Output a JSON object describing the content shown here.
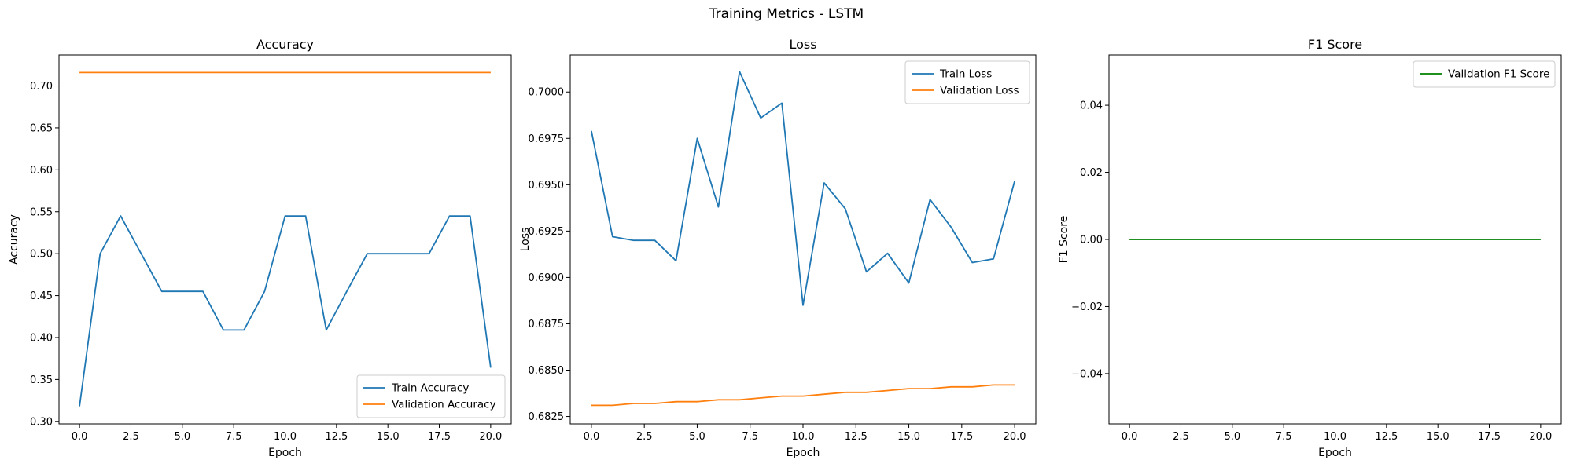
{
  "figure": {
    "suptitle": "Training Metrics - LSTM"
  },
  "colors": {
    "blue": "#1f77b4",
    "orange": "#ff7f0e",
    "green": "#008000",
    "axis": "#000000"
  },
  "chart_data": [
    {
      "type": "line",
      "title": "Accuracy",
      "xlabel": "Epoch",
      "ylabel": "Accuracy",
      "xlim": [
        -1,
        21
      ],
      "ylim": [
        0.297,
        0.737
      ],
      "xticks": [
        0,
        2.5,
        5,
        7.5,
        10,
        12.5,
        15,
        17.5,
        20
      ],
      "xtick_labels": [
        "0.0",
        "2.5",
        "5.0",
        "7.5",
        "10.0",
        "12.5",
        "15.0",
        "17.5",
        "20.0"
      ],
      "yticks": [
        0.3,
        0.35,
        0.4,
        0.45,
        0.5,
        0.55,
        0.6,
        0.65,
        0.7
      ],
      "ytick_labels": [
        "0.30",
        "0.35",
        "0.40",
        "0.45",
        "0.50",
        "0.55",
        "0.60",
        "0.65",
        "0.70"
      ],
      "legend": "lower right",
      "grid": false,
      "series": [
        {
          "name": "Train Accuracy",
          "color": "#1f77b4",
          "x": [
            0,
            1,
            2,
            3,
            4,
            5,
            6,
            7,
            8,
            9,
            10,
            11,
            12,
            13,
            14,
            15,
            16,
            17,
            18,
            19,
            20
          ],
          "y": [
            0.318,
            0.5,
            0.545,
            0.5,
            0.455,
            0.455,
            0.455,
            0.409,
            0.409,
            0.455,
            0.545,
            0.545,
            0.409,
            0.455,
            0.5,
            0.5,
            0.5,
            0.5,
            0.545,
            0.545,
            0.364
          ]
        },
        {
          "name": "Validation Accuracy",
          "color": "#ff7f0e",
          "x": [
            0,
            1,
            2,
            3,
            4,
            5,
            6,
            7,
            8,
            9,
            10,
            11,
            12,
            13,
            14,
            15,
            16,
            17,
            18,
            19,
            20
          ],
          "y": [
            0.716,
            0.716,
            0.716,
            0.716,
            0.716,
            0.716,
            0.716,
            0.716,
            0.716,
            0.716,
            0.716,
            0.716,
            0.716,
            0.716,
            0.716,
            0.716,
            0.716,
            0.716,
            0.716,
            0.716,
            0.716
          ]
        }
      ]
    },
    {
      "type": "line",
      "title": "Loss",
      "xlabel": "Epoch",
      "ylabel": "Loss",
      "xlim": [
        -1,
        21
      ],
      "ylim": [
        0.6821,
        0.702
      ],
      "xticks": [
        0,
        2.5,
        5,
        7.5,
        10,
        12.5,
        15,
        17.5,
        20
      ],
      "xtick_labels": [
        "0.0",
        "2.5",
        "5.0",
        "7.5",
        "10.0",
        "12.5",
        "15.0",
        "17.5",
        "20.0"
      ],
      "yticks": [
        0.6825,
        0.685,
        0.6875,
        0.69,
        0.6925,
        0.695,
        0.6975,
        0.7
      ],
      "ytick_labels": [
        "0.6825",
        "0.6850",
        "0.6875",
        "0.6900",
        "0.6925",
        "0.6950",
        "0.6975",
        "0.7000"
      ],
      "legend": "upper right",
      "grid": false,
      "series": [
        {
          "name": "Train Loss",
          "color": "#1f77b4",
          "x": [
            0,
            1,
            2,
            3,
            4,
            5,
            6,
            7,
            8,
            9,
            10,
            11,
            12,
            13,
            14,
            15,
            16,
            17,
            18,
            19,
            20
          ],
          "y": [
            0.6979,
            0.6922,
            0.692,
            0.692,
            0.6909,
            0.6975,
            0.6938,
            0.7011,
            0.6986,
            0.6994,
            0.6885,
            0.6951,
            0.6937,
            0.6903,
            0.6913,
            0.6897,
            0.6942,
            0.6927,
            0.6908,
            0.691,
            0.6952
          ]
        },
        {
          "name": "Validation Loss",
          "color": "#ff7f0e",
          "x": [
            0,
            1,
            2,
            3,
            4,
            5,
            6,
            7,
            8,
            9,
            10,
            11,
            12,
            13,
            14,
            15,
            16,
            17,
            18,
            19,
            20
          ],
          "y": [
            0.6831,
            0.6831,
            0.6832,
            0.6832,
            0.6833,
            0.6833,
            0.6834,
            0.6834,
            0.6835,
            0.6836,
            0.6836,
            0.6837,
            0.6838,
            0.6838,
            0.6839,
            0.684,
            0.684,
            0.6841,
            0.6841,
            0.6842,
            0.6842
          ]
        }
      ]
    },
    {
      "type": "line",
      "title": "F1 Score",
      "xlabel": "Epoch",
      "ylabel": "F1 Score",
      "xlim": [
        -1,
        21
      ],
      "ylim": [
        -0.055,
        0.055
      ],
      "xticks": [
        0,
        2.5,
        5,
        7.5,
        10,
        12.5,
        15,
        17.5,
        20
      ],
      "xtick_labels": [
        "0.0",
        "2.5",
        "5.0",
        "7.5",
        "10.0",
        "12.5",
        "15.0",
        "17.5",
        "20.0"
      ],
      "yticks": [
        -0.04,
        -0.02,
        0.0,
        0.02,
        0.04
      ],
      "ytick_labels": [
        "−0.04",
        "−0.02",
        "0.00",
        "0.02",
        "0.04"
      ],
      "legend": "upper right",
      "grid": false,
      "series": [
        {
          "name": "Validation F1 Score",
          "color": "#008000",
          "x": [
            0,
            1,
            2,
            3,
            4,
            5,
            6,
            7,
            8,
            9,
            10,
            11,
            12,
            13,
            14,
            15,
            16,
            17,
            18,
            19,
            20
          ],
          "y": [
            0,
            0,
            0,
            0,
            0,
            0,
            0,
            0,
            0,
            0,
            0,
            0,
            0,
            0,
            0,
            0,
            0,
            0,
            0,
            0,
            0
          ]
        }
      ]
    }
  ]
}
